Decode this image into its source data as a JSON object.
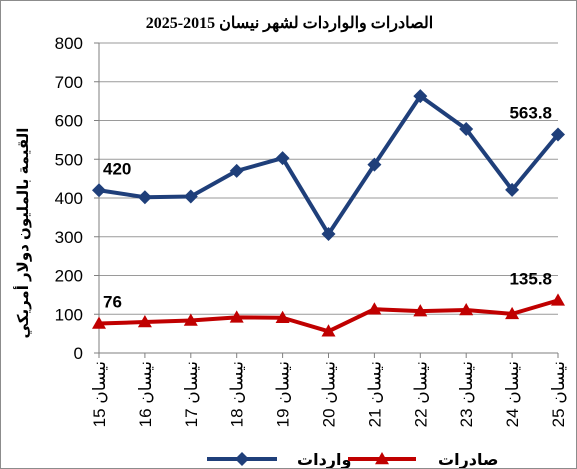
{
  "chart_data": {
    "type": "line",
    "title": "الصادرات والواردات لشهر نيسان 2015-2025",
    "ylabel": "القيمة بالمليون دولار أمريكي",
    "xlabel": "",
    "ylim": [
      0,
      800
    ],
    "yticks": [
      "0",
      "100",
      "200",
      "300",
      "400",
      "500",
      "600",
      "700",
      "800"
    ],
    "categories": [
      "نيسان 15",
      "نيسان 16",
      "نيسان 17",
      "نيسان 18",
      "نيسان 19",
      "نيسان 20",
      "نيسان 21",
      "نيسان 22",
      "نيسان 23",
      "نيسان 24",
      "نيسان 25"
    ],
    "grid": true,
    "legend_position": "bottom",
    "series": [
      {
        "name": "واردات",
        "color": "#1F3F7A",
        "marker": "diamond",
        "values": [
          420,
          402,
          404,
          470,
          503,
          307,
          486,
          663,
          578,
          421,
          563.8
        ],
        "data_labels": [
          {
            "index": 0,
            "text": "420"
          },
          {
            "index": 10,
            "text": "563.8"
          }
        ]
      },
      {
        "name": "صادرات",
        "color": "#C00000",
        "marker": "triangle",
        "values": [
          76,
          80,
          84,
          92,
          91,
          56,
          113,
          108,
          111,
          101,
          135.8
        ],
        "data_labels": [
          {
            "index": 0,
            "text": "76"
          },
          {
            "index": 10,
            "text": "135.8"
          }
        ]
      }
    ]
  }
}
